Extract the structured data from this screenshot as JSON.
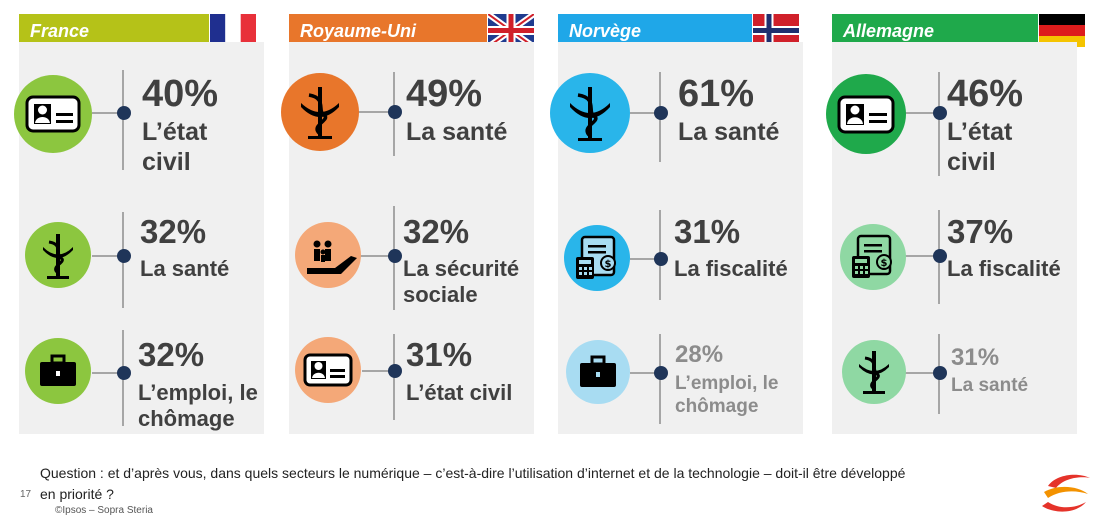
{
  "colors": {
    "france": "#b5c218",
    "uk": "#e8762b",
    "norway": "#1fa7e8",
    "germany": "#1fa94b",
    "green_icon": "#8cc63f",
    "orange_icon": "#e8762b",
    "orange_light": "#f4a878",
    "blue_icon": "#29b5ea",
    "blue_light": "#a8dcf2",
    "darkgreen_icon": "#1fa94b",
    "green_light": "#8fd8a3",
    "dot": "#1f3559",
    "text_dark": "#404040",
    "text_faded": "#8c8c8c"
  },
  "countries": [
    {
      "name": "France",
      "flag": "france-flag",
      "items": [
        {
          "pct": "40%",
          "label_lines": [
            "L’état",
            "civil"
          ],
          "icon": "id-card-icon"
        },
        {
          "pct": "32%",
          "label_lines": [
            "La santé"
          ],
          "icon": "caduceus-icon"
        },
        {
          "pct": "32%",
          "label_lines": [
            "L’emploi, le",
            "chômage"
          ],
          "icon": "briefcase-icon"
        }
      ]
    },
    {
      "name": "Royaume-Uni",
      "flag": "uk-flag",
      "items": [
        {
          "pct": "49%",
          "label_lines": [
            "La santé"
          ],
          "icon": "caduceus-icon"
        },
        {
          "pct": "32%",
          "label_lines": [
            "La sécurité",
            "sociale"
          ],
          "icon": "family-hand-icon"
        },
        {
          "pct": "31%",
          "label_lines": [
            "L’état civil"
          ],
          "icon": "id-card-icon"
        }
      ]
    },
    {
      "name": "Norvège",
      "flag": "norway-flag",
      "items": [
        {
          "pct": "61%",
          "label_lines": [
            "La santé"
          ],
          "icon": "caduceus-icon"
        },
        {
          "pct": "31%",
          "label_lines": [
            "La fiscalité"
          ],
          "icon": "tax-calculator-icon"
        },
        {
          "pct": "28%",
          "label_lines": [
            "L’emploi, le",
            "chômage"
          ],
          "icon": "briefcase-icon"
        }
      ]
    },
    {
      "name": "Allemagne",
      "flag": "germany-flag",
      "items": [
        {
          "pct": "46%",
          "label_lines": [
            "L’état",
            "civil"
          ],
          "icon": "id-card-icon"
        },
        {
          "pct": "37%",
          "label_lines": [
            "La fiscalité"
          ],
          "icon": "tax-calculator-icon"
        },
        {
          "pct": "31%",
          "label_lines": [
            "La santé"
          ],
          "icon": "caduceus-icon"
        }
      ]
    }
  ],
  "footer": {
    "question": "Question : et d’après vous, dans quels secteurs le numérique – c’est-à-dire l’utilisation d’internet et de la technologie – doit-il être développé en priorité ?",
    "page_number": "17",
    "copyright": "©Ipsos – Sopra Steria",
    "logo": "sopra-steria-logo"
  }
}
